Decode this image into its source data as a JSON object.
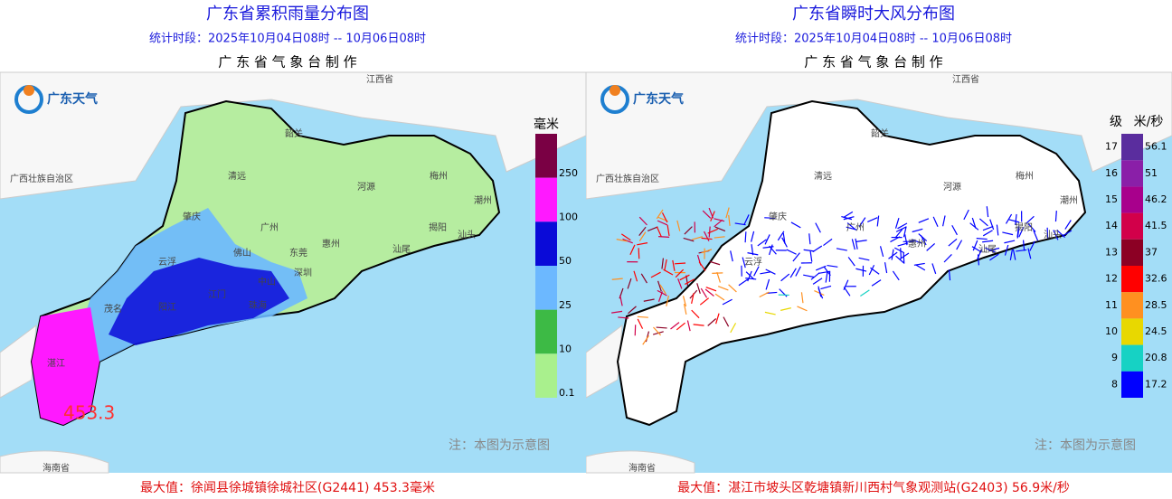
{
  "panels": [
    {
      "title": "广东省累积雨量分布图",
      "period": "统计时段：2025年10月04日08时  --  10月06日08时",
      "publisher": "广 东 省 气 象 台 制 作",
      "brand": "广东天气",
      "places": [
        "江西省",
        "广西壮族自治区",
        "韶关",
        "清远",
        "河源",
        "梅州",
        "潮州",
        "肇庆",
        "广州",
        "惠州",
        "揭阳",
        "汕头",
        "云浮",
        "佛山",
        "东莞",
        "汕尾",
        "深圳",
        "江门",
        "中山",
        "珠海",
        "阳江",
        "茂名",
        "湛江",
        "海南省"
      ],
      "legend": {
        "unit": "毫米",
        "labels": [
          "250",
          "100",
          "50",
          "25",
          "10",
          "0.1"
        ],
        "colors": [
          "#7a0044",
          "#ff19ff",
          "#0a0ad8",
          "#6cb8ff",
          "#3dba45",
          "#a9f08d"
        ]
      },
      "max_label": "453.3",
      "note": "注：本图为示意图",
      "max_text": "最大值：徐闻县徐城镇徐城社区(G2441) 453.3毫米"
    },
    {
      "title": "广东省瞬时大风分布图",
      "period": "统计时段：2025年10月04日08时 -- 10月06日08时",
      "publisher": "广 东 省 气 象 台 制 作",
      "brand": "广东天气",
      "places": [
        "江西省",
        "广西壮族自治区",
        "韶关",
        "清远",
        "河源",
        "梅州",
        "潮州",
        "肇庆",
        "广州",
        "揭阳",
        "惠州",
        "汕头",
        "汕尾",
        "云浮",
        "海南省"
      ],
      "legend": {
        "level_header": "级",
        "unit": "米/秒",
        "levels": [
          "17",
          "16",
          "15",
          "14",
          "13",
          "12",
          "11",
          "10",
          "9",
          "8"
        ],
        "labels": [
          "56.1",
          "51",
          "46.2",
          "41.5",
          "37",
          "32.6",
          "28.5",
          "24.5",
          "20.8",
          "17.2"
        ],
        "colors": [
          "#5a2d9e",
          "#8a1fa8",
          "#a8008c",
          "#d2004a",
          "#8c0024",
          "#ff0000",
          "#ff9020",
          "#e8d800",
          "#16d2c4",
          "#0000ff"
        ]
      },
      "note": "注：本图为示意图",
      "max_text": "最大值：湛江市坡头区乾塘镇新川西村气象观测站(G2403) 56.9米/秒"
    }
  ]
}
